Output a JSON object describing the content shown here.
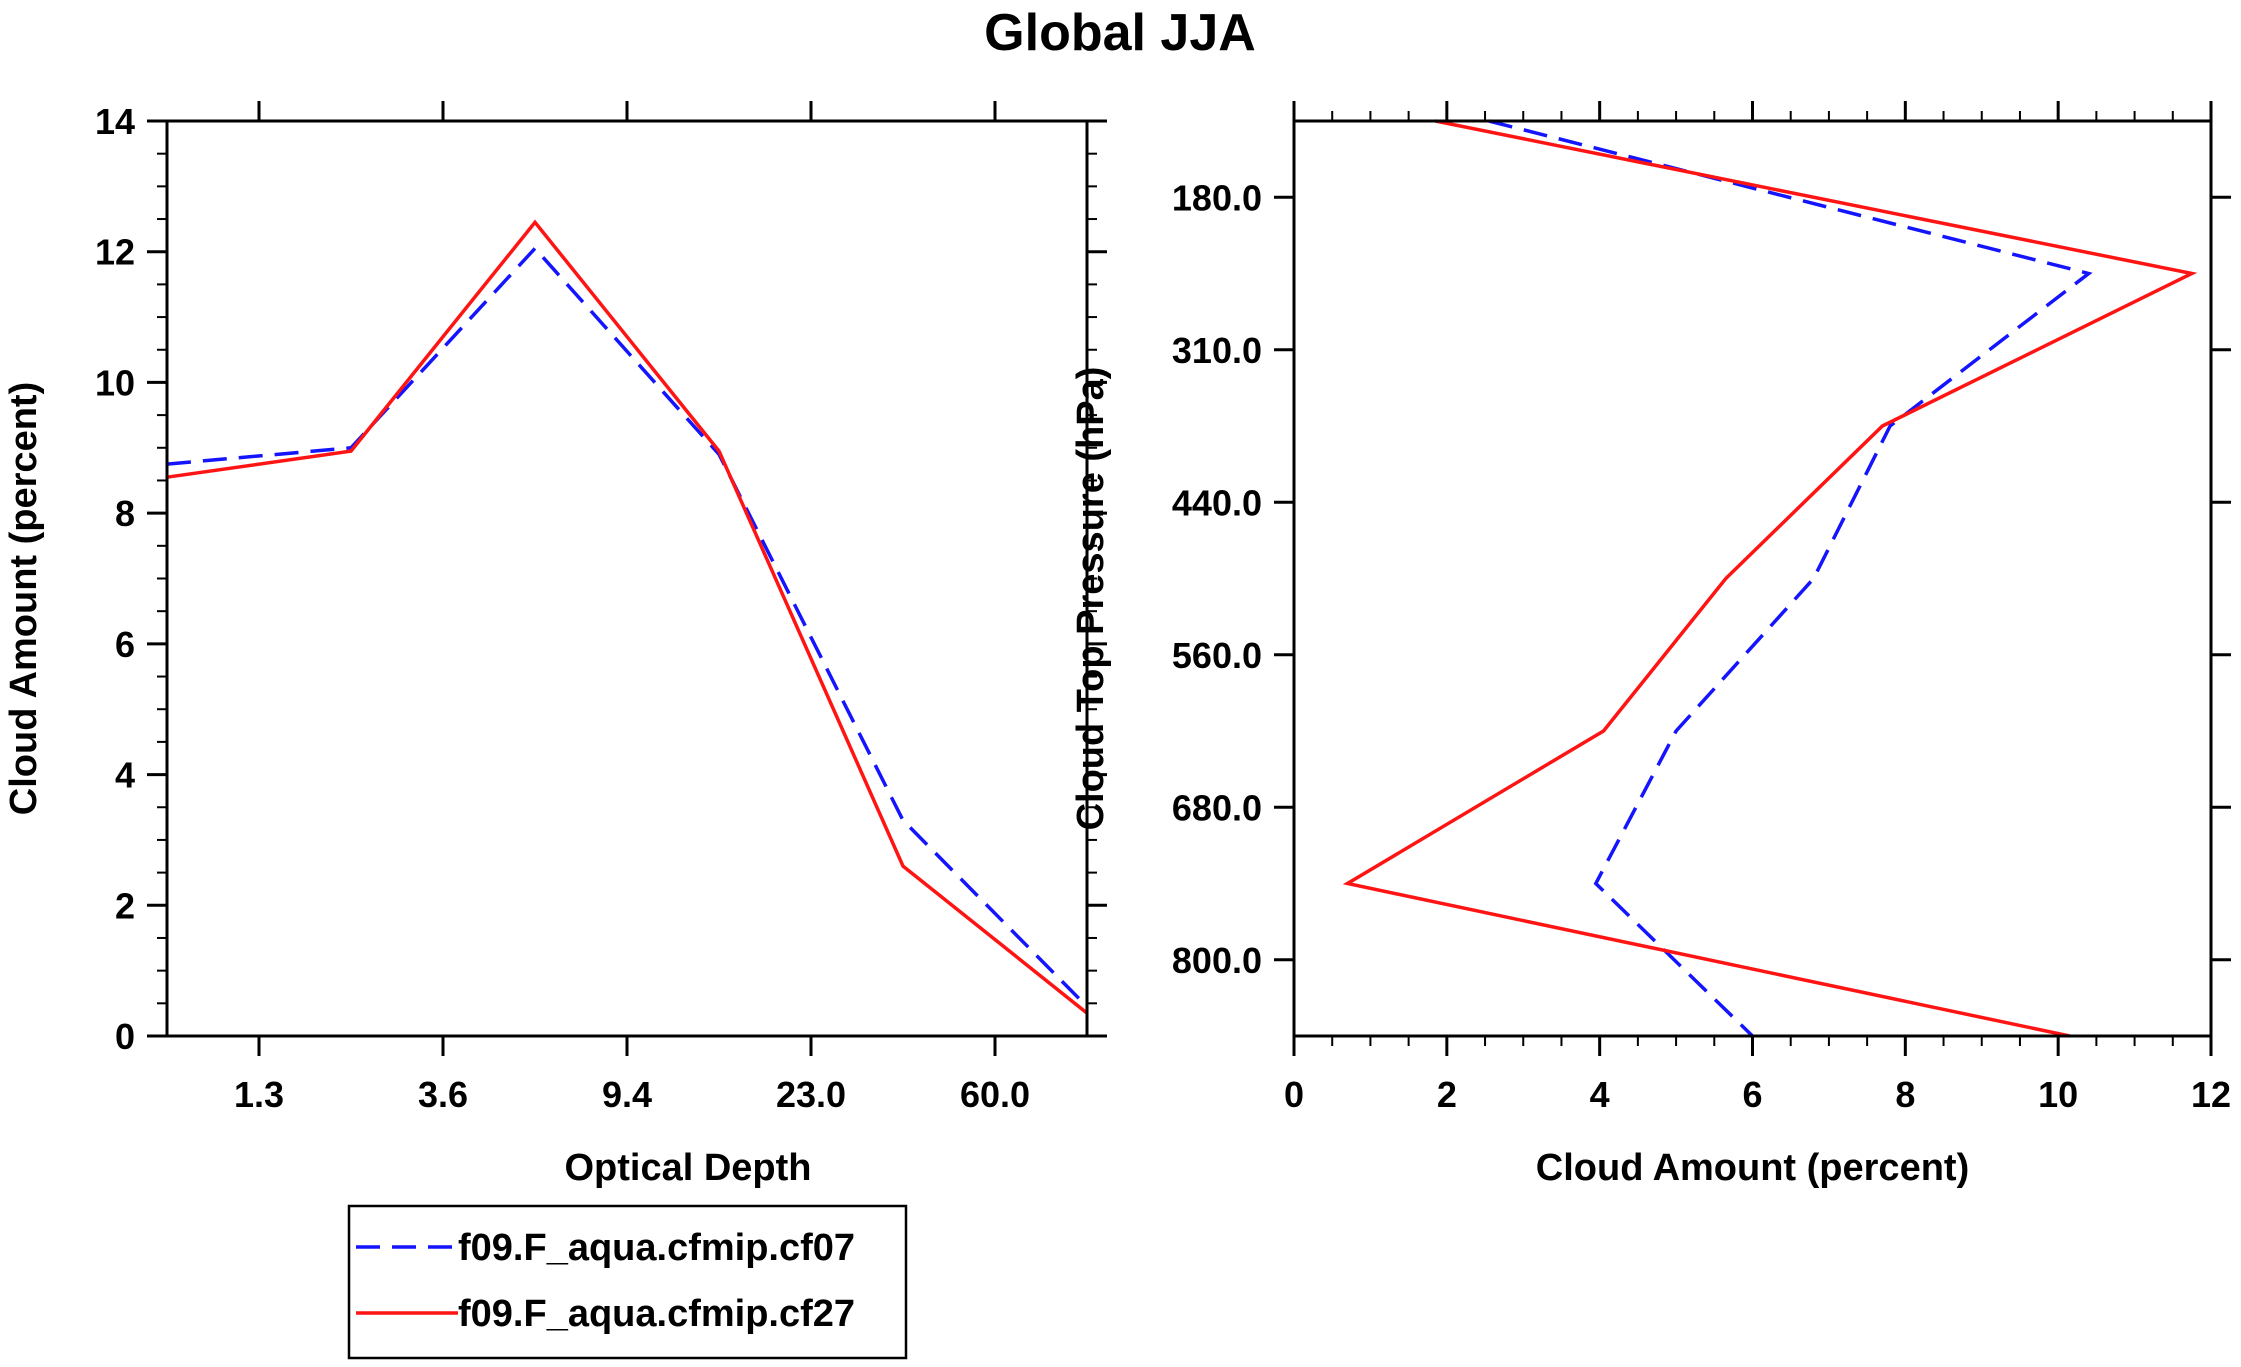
{
  "title": "Global JJA",
  "chart_data": [
    {
      "type": "line",
      "xlabel": "Optical Depth",
      "ylabel": "Cloud Amount (percent)",
      "ylim": [
        0,
        14
      ],
      "y_ticks": [
        0,
        2,
        4,
        6,
        8,
        10,
        12,
        14
      ],
      "x_tick_labels": [
        "1.3",
        "3.6",
        "9.4",
        "23.0",
        "60.0"
      ],
      "x": [
        0.5,
        1.5,
        2.5,
        3.5,
        4.5,
        5.5
      ],
      "xlim": [
        0.5,
        5.5
      ],
      "series": [
        {
          "name": "f09.F_aqua.cfmip.cf07",
          "style": "dashed",
          "color": "#1414ff",
          "values": [
            8.75,
            9.0,
            12.05,
            8.9,
            3.3,
            0.45
          ]
        },
        {
          "name": "f09.F_aqua.cfmip.cf27",
          "style": "solid",
          "color": "#ff1414",
          "values": [
            8.55,
            8.95,
            12.45,
            8.95,
            2.6,
            0.35
          ]
        }
      ]
    },
    {
      "type": "line",
      "xlabel": "Cloud Amount (percent)",
      "ylabel": "Cloud Top Pressure (hPa)",
      "xlim": [
        0,
        12
      ],
      "x_ticks": [
        0,
        2,
        4,
        6,
        8,
        10,
        12
      ],
      "y_tick_labels": [
        "180.0",
        "310.0",
        "440.0",
        "560.0",
        "680.0",
        "800.0"
      ],
      "y_tick_positions": [
        1,
        2,
        3,
        4,
        5,
        6
      ],
      "ylim": [
        0.5,
        6.5
      ],
      "y": [
        0.5,
        1.5,
        2.5,
        3.5,
        4.5,
        5.5,
        6.5
      ],
      "series": [
        {
          "name": "f09.F_aqua.cfmip.cf07",
          "style": "dashed",
          "color": "#1414ff",
          "values": [
            2.55,
            10.4,
            7.8,
            6.8,
            5.0,
            3.95,
            6.0
          ]
        },
        {
          "name": "f09.F_aqua.cfmip.cf27",
          "style": "solid",
          "color": "#ff1414",
          "values": [
            1.85,
            11.75,
            7.7,
            5.65,
            4.05,
            0.7,
            10.15
          ]
        }
      ]
    }
  ],
  "legend": {
    "entries": [
      {
        "label": "f09.F_aqua.cfmip.cf07",
        "style": "dashed",
        "color": "#1414ff"
      },
      {
        "label": "f09.F_aqua.cfmip.cf27",
        "style": "solid",
        "color": "#ff1414"
      }
    ]
  }
}
